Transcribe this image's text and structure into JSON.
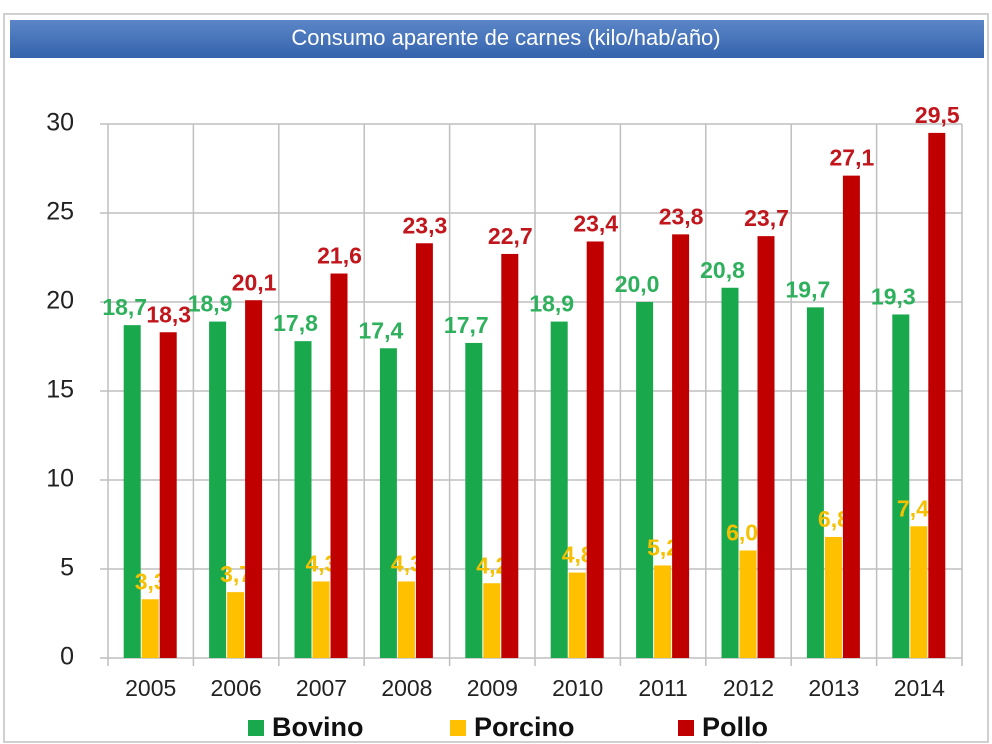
{
  "chart_data": {
    "type": "bar",
    "title": "Consumo aparente de carnes (kilo/hab/año)",
    "categories": [
      "2005",
      "2006",
      "2007",
      "2008",
      "2009",
      "2010",
      "2011",
      "2012",
      "2013",
      "2014"
    ],
    "series": [
      {
        "name": "Bovino",
        "color": "#1aa84c",
        "label_color": "#2eb05c",
        "values": [
          18.7,
          18.9,
          17.8,
          17.4,
          17.7,
          18.9,
          20.0,
          20.8,
          19.7,
          19.3
        ],
        "value_labels": [
          "18,7",
          "18,9",
          "17,8",
          "17,4",
          "17,7",
          "18,9",
          "20,0",
          "20,8",
          "19,7",
          "19,3"
        ]
      },
      {
        "name": "Porcino",
        "color": "#ffc000",
        "label_color": "#f5c000",
        "values": [
          3.3,
          3.7,
          4.3,
          4.3,
          4.2,
          4.8,
          5.2,
          6.04,
          6.8,
          7.4
        ],
        "value_labels": [
          "3,3",
          "3,7",
          "4,3",
          "4,3",
          "4,2",
          "4,8",
          "5,2",
          "6,04",
          "6,8",
          "7,40"
        ]
      },
      {
        "name": "Pollo",
        "color": "#c00000",
        "label_color": "#c0161c",
        "values": [
          18.3,
          20.1,
          21.6,
          23.3,
          22.7,
          23.4,
          23.8,
          23.7,
          27.1,
          29.5
        ],
        "value_labels": [
          "18,3",
          "20,1",
          "21,6",
          "23,3",
          "22,7",
          "23,4",
          "23,8",
          "23,7",
          "27,1",
          "29,5"
        ]
      }
    ],
    "ylim": [
      0,
      30
    ],
    "yticks": [
      0,
      5,
      10,
      15,
      20,
      25,
      30
    ],
    "grid": true,
    "legend": "bottom"
  }
}
